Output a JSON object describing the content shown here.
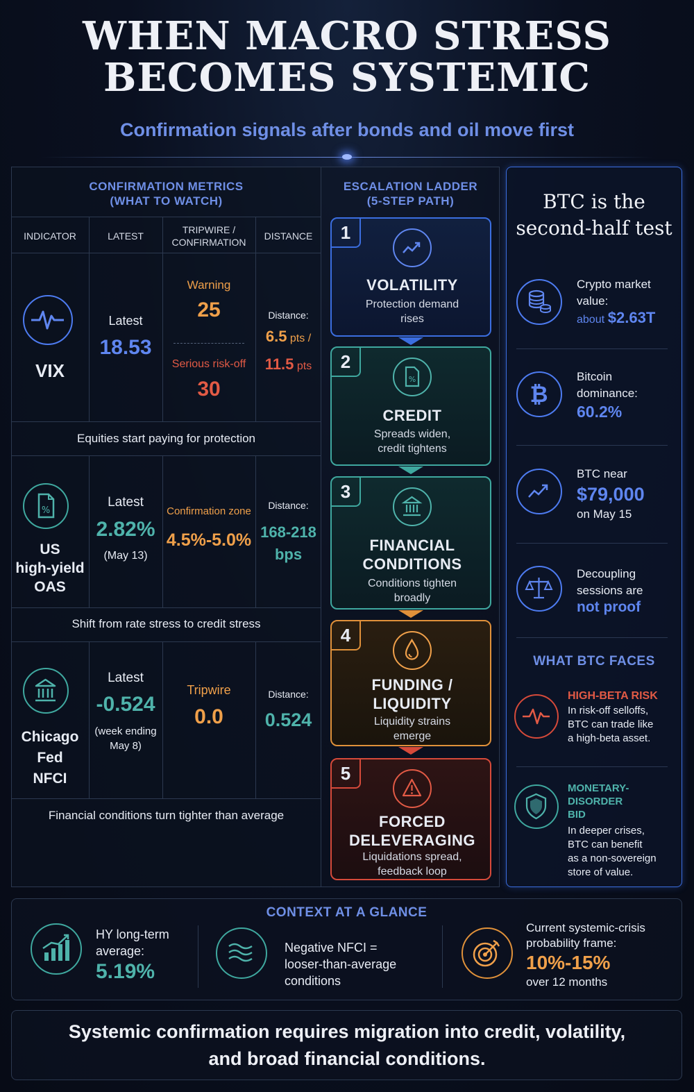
{
  "header": {
    "title_line1": "WHEN MACRO STRESS",
    "title_line2": "BECOMES SYSTEMIC",
    "subtitle": "Confirmation signals after bonds and oil move first"
  },
  "metrics": {
    "title_line1": "CONFIRMATION METRICS",
    "title_line2": "(WHAT TO WATCH)",
    "headers": [
      "INDICATOR",
      "LATEST",
      "TRIPWIRE /",
      "CONFIRMATION",
      "DISTANCE"
    ],
    "vix": {
      "name": "VIX",
      "latest_label": "Latest",
      "latest_value": "18.53",
      "warning_label": "Warning",
      "warning_value": "25",
      "serious_label": "Serious risk-off",
      "serious_value": "30",
      "distance_label": "Distance:",
      "distance_1": "6.5",
      "distance_1_unit": "pts /",
      "distance_2": "11.5",
      "distance_2_unit": "pts",
      "note": "Equities start paying for protection"
    },
    "hy": {
      "name_line1": "US",
      "name_line2": "high-yield",
      "name_line3": "OAS",
      "latest_label": "Latest",
      "latest_value": "2.82%",
      "latest_date": "(May 13)",
      "zone_label": "Confirmation zone",
      "zone_value": "4.5%-5.0%",
      "distance_label": "Distance:",
      "distance_value": "168-218",
      "distance_unit": "bps",
      "note": "Shift from rate stress to credit stress"
    },
    "nfci": {
      "name_line1": "Chicago",
      "name_line2": "Fed",
      "name_line3": "NFCI",
      "latest_label": "Latest",
      "latest_value": "-0.524",
      "latest_date_line1": "(week ending",
      "latest_date_line2": "May 8)",
      "tripwire_label": "Tripwire",
      "tripwire_value": "0.0",
      "distance_label": "Distance:",
      "distance_value": "0.524",
      "note": "Financial conditions turn tighter than average"
    }
  },
  "ladder": {
    "title_line1": "ESCALATION LADDER",
    "title_line2": "(5-STEP PATH)",
    "steps": [
      {
        "num": "1",
        "title": "VOLATILITY",
        "title2": "",
        "desc1": "Protection demand",
        "desc2": "rises",
        "color": "#3b6ee0",
        "icon": "trend-up-icon"
      },
      {
        "num": "2",
        "title": "CREDIT",
        "title2": "",
        "desc1": "Spreads widen,",
        "desc2": "credit tightens",
        "color": "#3fa89f",
        "icon": "document-percent-icon"
      },
      {
        "num": "3",
        "title": "FINANCIAL",
        "title2": "CONDITIONS",
        "desc1": "Conditions tighten",
        "desc2": "broadly",
        "color": "#3fa89f",
        "icon": "bank-icon"
      },
      {
        "num": "4",
        "title": "FUNDING /",
        "title2": "LIQUIDITY",
        "desc1": "Liquidity strains",
        "desc2": "emerge",
        "color": "#e0913a",
        "icon": "droplet-icon"
      },
      {
        "num": "5",
        "title": "FORCED",
        "title2": "DELEVERAGING",
        "desc1": "Liquidations spread,",
        "desc2": "feedback loop",
        "color": "#d64a3a",
        "icon": "warning-icon"
      }
    ]
  },
  "btc": {
    "title_line1": "BTC is the",
    "title_line2": "second-half test",
    "items": [
      {
        "line1": "Crypto market",
        "line2": "value:",
        "prefix": "about",
        "value": "$2.63T",
        "icon": "coins-icon"
      },
      {
        "line1": "Bitcoin",
        "line2": "dominance:",
        "value": "60.2%",
        "icon": "bitcoin-icon"
      },
      {
        "line1": "BTC near",
        "value": "$79,000",
        "line3": "on May 15",
        "icon": "chart-up-icon"
      },
      {
        "line1": "Decoupling",
        "line2": "sessions are",
        "value": "not proof",
        "icon": "scales-icon"
      }
    ],
    "faces_title": "WHAT BTC FACES",
    "faces": [
      {
        "title": "HIGH-BETA RISK",
        "title2": "",
        "desc": [
          "In risk-off selloffs,",
          "BTC can trade like",
          "a high-beta asset."
        ],
        "color": "#e25a45",
        "icon": "pulse-icon"
      },
      {
        "title": "MONETARY-DISORDER",
        "title2": "BID",
        "desc": [
          "In deeper crises,",
          "BTC can benefit",
          "as a non-sovereign",
          "store of value."
        ],
        "color": "#4fb3ab",
        "icon": "shield-icon"
      }
    ]
  },
  "context": {
    "title": "CONTEXT AT A GLANCE",
    "items": [
      {
        "line1": "HY long-term",
        "line2": "average:",
        "value": "5.19%",
        "icon": "bar-chart-icon"
      },
      {
        "line1": "Negative NFCI =",
        "line2": "looser-than-average",
        "line3": "conditions",
        "icon": "waves-icon"
      },
      {
        "line1": "Current systemic-crisis",
        "line2": "probability frame:",
        "value": "10%-15%",
        "line3": "over 12 months",
        "icon": "target-icon"
      }
    ]
  },
  "footer": {
    "line1": "Systemic confirmation requires migration into credit, volatility,",
    "line2": "and broad financial conditions."
  },
  "colors": {
    "blue": "#5f86f0",
    "teal": "#4fb3ab",
    "orange": "#f0a04a",
    "red": "#e25a45"
  }
}
